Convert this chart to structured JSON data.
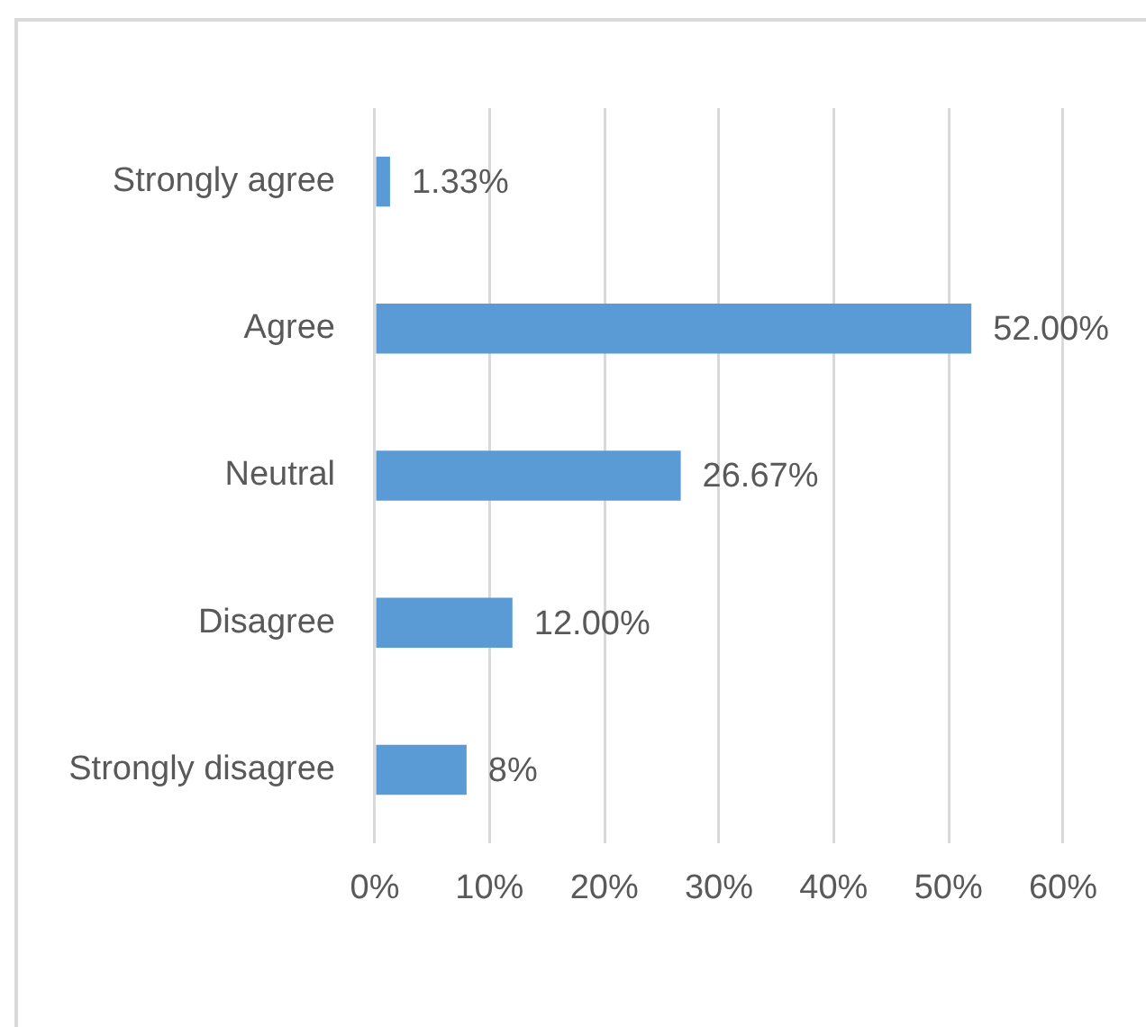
{
  "chart_data": {
    "type": "bar",
    "orientation": "horizontal",
    "categories": [
      "Strongly agree",
      "Agree",
      "Neutral",
      "Disagree",
      "Strongly disagree"
    ],
    "values": [
      1.33,
      52,
      26.67,
      12,
      8
    ],
    "value_labels": [
      "1.33%",
      "52.00%",
      "26.67%",
      "12.00%",
      "8%"
    ],
    "color": "#5b9bd5",
    "xlim": [
      0,
      60
    ],
    "xticks": [
      {
        "value": 0,
        "label": "0%"
      },
      {
        "value": 10,
        "label": "10%"
      },
      {
        "value": 20,
        "label": "20%"
      },
      {
        "value": 30,
        "label": "30%"
      },
      {
        "value": 40,
        "label": "40%"
      },
      {
        "value": 50,
        "label": "50%"
      },
      {
        "value": 60,
        "label": "60%"
      }
    ],
    "grid": "x"
  }
}
